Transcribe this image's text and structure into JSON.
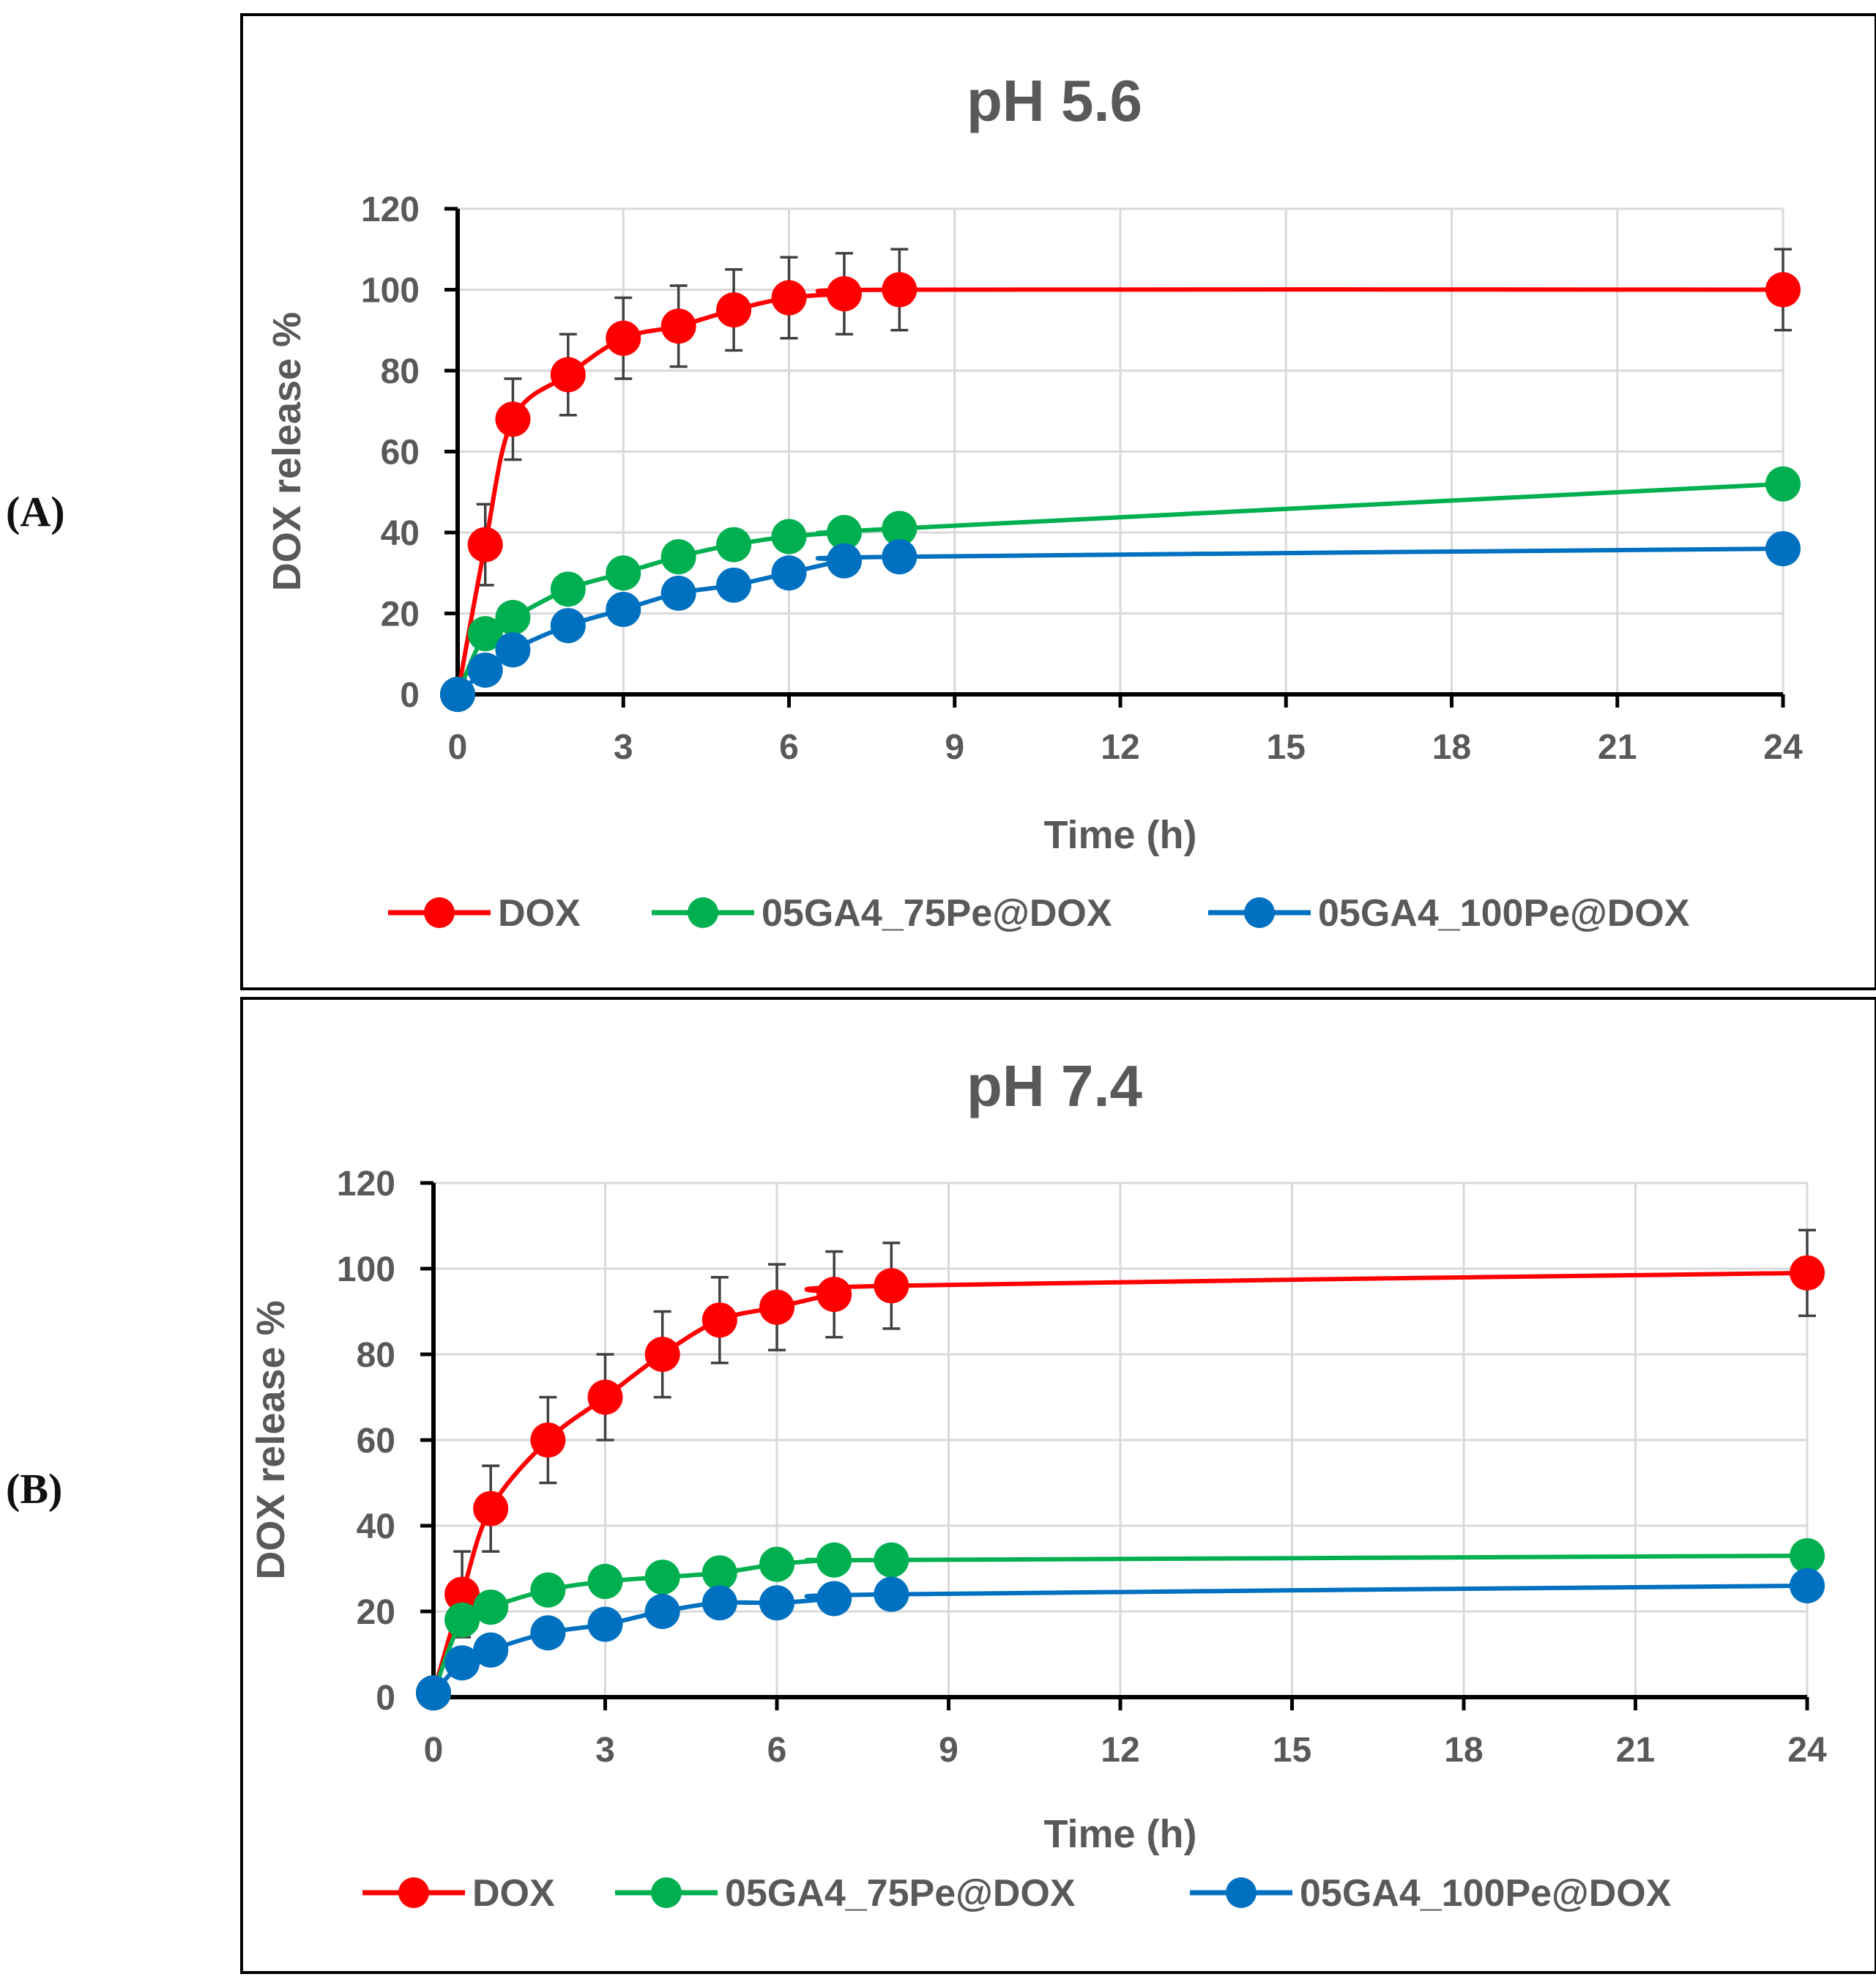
{
  "figure": {
    "panel_labels": [
      "(A)",
      "(B)"
    ]
  },
  "series_styles": [
    {
      "name": "DOX",
      "color": "#ff0000"
    },
    {
      "name": "05GA4_75Pe@DOX",
      "color": "#00b050"
    },
    {
      "name": "05GA4_100Pe@DOX",
      "color": "#0070c0"
    }
  ],
  "chart_data": [
    {
      "type": "line",
      "title": "pH 5.6",
      "xlabel": "Time (h)",
      "ylabel": "DOX release %",
      "xlim": [
        0,
        24
      ],
      "ylim": [
        0,
        120
      ],
      "xticks": [
        0,
        3,
        6,
        9,
        12,
        15,
        18,
        21,
        24
      ],
      "yticks": [
        0,
        20,
        40,
        60,
        80,
        100,
        120
      ],
      "x": [
        0,
        0.5,
        1,
        2,
        3,
        4,
        5,
        6,
        7,
        8,
        24
      ],
      "legend_position": "bottom",
      "series": [
        {
          "name": "DOX",
          "values": [
            0,
            37,
            68,
            79,
            88,
            91,
            95,
            98,
            99,
            100,
            100
          ],
          "errors": [
            0,
            10,
            10,
            10,
            10,
            10,
            10,
            10,
            10,
            10,
            10
          ]
        },
        {
          "name": "05GA4_75Pe@DOX",
          "values": [
            0,
            15,
            19,
            26,
            30,
            34,
            37,
            39,
            40,
            41,
            52
          ],
          "errors": [
            0,
            0,
            0,
            0,
            0,
            0,
            0,
            0,
            0,
            0,
            0
          ]
        },
        {
          "name": "05GA4_100Pe@DOX",
          "values": [
            0,
            6,
            11,
            17,
            21,
            25,
            27,
            30,
            33,
            34,
            36
          ],
          "errors": [
            0,
            0,
            0,
            0,
            0,
            0,
            0,
            0,
            0,
            0,
            0
          ]
        }
      ]
    },
    {
      "type": "line",
      "title": "pH 7.4",
      "xlabel": "Time (h)",
      "ylabel": "DOX release %",
      "xlim": [
        0,
        24
      ],
      "ylim": [
        0,
        120
      ],
      "xticks": [
        0,
        3,
        6,
        9,
        12,
        15,
        18,
        21,
        24
      ],
      "yticks": [
        0,
        20,
        40,
        60,
        80,
        100,
        120
      ],
      "x": [
        0,
        0.5,
        1,
        2,
        3,
        4,
        5,
        6,
        7,
        8,
        24
      ],
      "legend_position": "bottom",
      "series": [
        {
          "name": "DOX",
          "values": [
            1,
            24,
            44,
            60,
            70,
            80,
            88,
            91,
            94,
            96,
            99
          ],
          "errors": [
            0,
            10,
            10,
            10,
            10,
            10,
            10,
            10,
            10,
            10,
            10
          ]
        },
        {
          "name": "05GA4_75Pe@DOX",
          "values": [
            1,
            18,
            21,
            25,
            27,
            28,
            29,
            31,
            32,
            32,
            33
          ],
          "errors": [
            0,
            0,
            0,
            0,
            0,
            0,
            0,
            0,
            0,
            0,
            0
          ]
        },
        {
          "name": "05GA4_100Pe@DOX",
          "values": [
            1,
            8,
            11,
            15,
            17,
            20,
            22,
            22,
            23,
            24,
            26
          ],
          "errors": [
            0,
            0,
            0,
            0,
            0,
            0,
            0,
            0,
            0,
            0,
            0
          ]
        }
      ]
    }
  ]
}
